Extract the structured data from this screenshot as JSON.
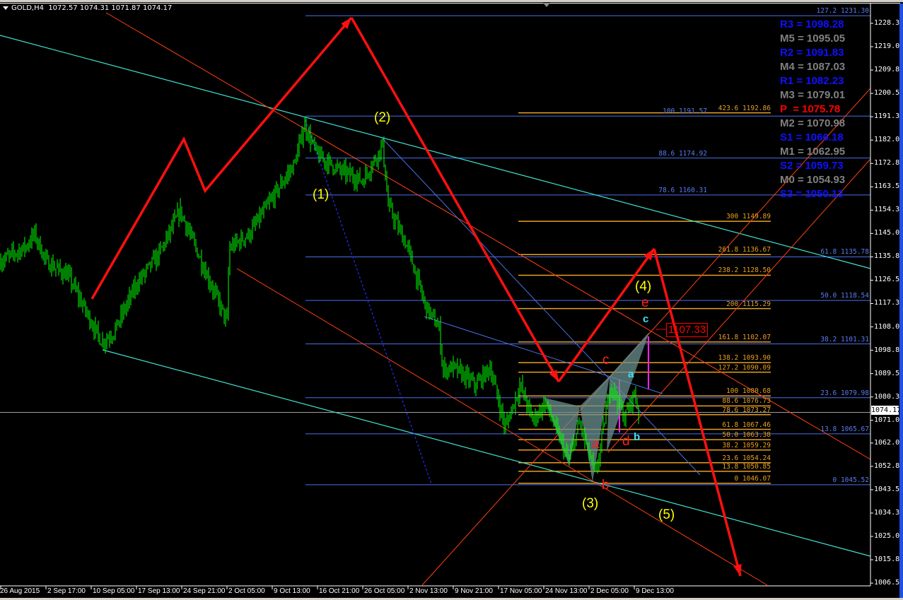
{
  "header": {
    "symbol": "GOLD,H4",
    "open": "1072.57",
    "high": "1074.31",
    "low": "1071.87",
    "close": "1074.17"
  },
  "current_price": "1074.17",
  "target_box": "1107.33",
  "pivots": [
    {
      "text": "R3 = 1098.28",
      "color": "#1010ff"
    },
    {
      "text": "M5 = 1095.05",
      "color": "#808080"
    },
    {
      "text": "R2 = 1091.83",
      "color": "#1010ff"
    },
    {
      "text": "M4 = 1087.03",
      "color": "#808080"
    },
    {
      "text": "R1 = 1082.23",
      "color": "#1010ff"
    },
    {
      "text": "M3 = 1079.01",
      "color": "#808080"
    },
    {
      "text": "P  = 1075.78",
      "color": "#ff0000"
    },
    {
      "text": "M2 = 1070.98",
      "color": "#808080"
    },
    {
      "text": "S1 = 1066.18",
      "color": "#1010ff"
    },
    {
      "text": "M1 = 1062.95",
      "color": "#808080"
    },
    {
      "text": "S2 = 1059.73",
      "color": "#1010ff"
    },
    {
      "text": "M0 = 1054.93",
      "color": "#808080"
    },
    {
      "text": "S3 = 1050.13",
      "color": "#1010ff"
    }
  ],
  "fib_orange": {
    "color": "#e8a020",
    "levels": [
      {
        "level": "423.6",
        "price": "1192.86"
      },
      {
        "level": "300",
        "price": "1149.89"
      },
      {
        "level": "261.8",
        "price": "1136.67"
      },
      {
        "level": "238.2",
        "price": "1128.50"
      },
      {
        "level": "200",
        "price": "1115.29"
      },
      {
        "level": "161.8",
        "price": "1102.07"
      },
      {
        "level": "138.2",
        "price": "1093.90"
      },
      {
        "level": "127.2",
        "price": "1090.09"
      },
      {
        "level": "100",
        "price": "1080.68"
      },
      {
        "level": "88.6",
        "price": "1076.73"
      },
      {
        "level": "78.6",
        "price": "1073.27"
      },
      {
        "level": "61.8",
        "price": "1067.46"
      },
      {
        "level": "50.0",
        "price": "1063.38"
      },
      {
        "level": "38.2",
        "price": "1059.29"
      },
      {
        "level": "23.6",
        "price": "1054.24"
      },
      {
        "level": "13.8",
        "price": "1050.85"
      },
      {
        "level": "0",
        "price": "1046.07"
      }
    ]
  },
  "fib_blue": {
    "color": "#4a70e8",
    "levels": [
      {
        "level": "127.2",
        "price": "1231.30"
      },
      {
        "level": "100",
        "price": "1191.57"
      },
      {
        "level": "88.6",
        "price": "1174.92"
      },
      {
        "level": "78.6",
        "price": "1160.31"
      },
      {
        "level": "61.8",
        "price": "1135.78"
      },
      {
        "level": "50.0",
        "price": "1118.54"
      },
      {
        "level": "38.2",
        "price": "1101.31"
      },
      {
        "level": "23.6",
        "price": "1079.98"
      },
      {
        "level": "13.8",
        "price": "1065.67"
      },
      {
        "level": "0",
        "price": "1045.52"
      }
    ]
  },
  "waves": {
    "color": "#ffff00",
    "w1": "(1)",
    "w2": "(2)",
    "w3": "(3)",
    "w4": "(4)",
    "w5": "(5)"
  },
  "letters_red": {
    "a": "a",
    "b": "b",
    "c": "c",
    "d": "d",
    "e": "e"
  },
  "letters_cyan": {
    "a": "a",
    "b": "b",
    "c": "c"
  },
  "chart_data": {
    "type": "bar",
    "title": "GOLD,H4",
    "series_color": "#00ff00",
    "y_ticks": [
      "1228.30",
      "1219.05",
      "1209.80",
      "1200.55",
      "1191.30",
      "1182.05",
      "1172.80",
      "1163.55",
      "1154.30",
      "1145.05",
      "1135.80",
      "1126.55",
      "1117.30",
      "1108.05",
      "1098.80",
      "1089.55",
      "1080.30",
      "1071.05",
      "1062.05",
      "1052.80",
      "1043.55",
      "1034.30",
      "1025.05",
      "1015.80",
      "1006.55"
    ],
    "ylim": [
      1006.55,
      1228.3
    ],
    "x_ticks": [
      {
        "label": "26 Aug 2015",
        "time": "2015-08-26 00:00"
      },
      {
        "label": "2 Sep 17:00",
        "time": "2015-09-02 17:00"
      },
      {
        "label": "10 Sep 05:00",
        "time": "2015-09-10 05:00"
      },
      {
        "label": "17 Sep 13:00",
        "time": "2015-09-17 13:00"
      },
      {
        "label": "24 Sep 21:00",
        "time": "2015-09-24 21:00"
      },
      {
        "label": "2 Oct 05:00",
        "time": "2015-10-02 05:00"
      },
      {
        "label": "9 Oct 13:00",
        "time": "2015-10-09 13:00"
      },
      {
        "label": "16 Oct 21:00",
        "time": "2015-10-16 21:00"
      },
      {
        "label": "26 Oct 05:00",
        "time": "2015-10-26 05:00"
      },
      {
        "label": "2 Nov 13:00",
        "time": "2015-11-02 13:00"
      },
      {
        "label": "9 Nov 21:00",
        "time": "2015-11-09 21:00"
      },
      {
        "label": "17 Nov 05:00",
        "time": "2015-11-17 05:00"
      },
      {
        "label": "24 Nov 13:00",
        "time": "2015-11-24 13:00"
      },
      {
        "label": "2 Dec 05:00",
        "time": "2015-12-02 05:00"
      },
      {
        "label": "9 Dec 13:00",
        "time": "2015-12-09 13:00"
      }
    ],
    "price_path": [
      {
        "t": "2015-08-26 00:00",
        "p": 1134
      },
      {
        "t": "2015-08-30 08:00",
        "p": 1140
      },
      {
        "t": "2015-08-31 18:00",
        "p": 1145
      },
      {
        "t": "2015-09-02 17:00",
        "p": 1134
      },
      {
        "t": "2015-09-06 11:00",
        "p": 1128
      },
      {
        "t": "2015-09-10 05:00",
        "p": 1110
      },
      {
        "t": "2015-09-11 22:00",
        "p": 1102
      },
      {
        "t": "2015-09-13 21:00",
        "p": 1106
      },
      {
        "t": "2015-09-17 13:00",
        "p": 1125
      },
      {
        "t": "2015-09-21 05:00",
        "p": 1137
      },
      {
        "t": "2015-09-24 15:00",
        "p": 1154
      },
      {
        "t": "2015-09-28 13:00",
        "p": 1131
      },
      {
        "t": "2015-10-02 05:00",
        "p": 1110
      },
      {
        "t": "2015-10-02 13:00",
        "p": 1139
      },
      {
        "t": "2015-10-05 21:00",
        "p": 1145
      },
      {
        "t": "2015-10-09 13:00",
        "p": 1159
      },
      {
        "t": "2015-10-13 05:00",
        "p": 1173
      },
      {
        "t": "2015-10-14 18:00",
        "p": 1188
      },
      {
        "t": "2015-10-16 21:00",
        "p": 1176
      },
      {
        "t": "2015-10-21 13:00",
        "p": 1170
      },
      {
        "t": "2015-10-26 05:00",
        "p": 1166
      },
      {
        "t": "2015-10-29 10:00",
        "p": 1180
      },
      {
        "t": "2015-10-30 08:00",
        "p": 1156
      },
      {
        "t": "2015-11-02 13:00",
        "p": 1139
      },
      {
        "t": "2015-11-05 06:00",
        "p": 1117
      },
      {
        "t": "2015-11-07 15:00",
        "p": 1107
      },
      {
        "t": "2015-11-08 04:00",
        "p": 1091
      },
      {
        "t": "2015-11-09 21:00",
        "p": 1092
      },
      {
        "t": "2015-11-13 13:00",
        "p": 1085
      },
      {
        "t": "2015-11-15 20:00",
        "p": 1092
      },
      {
        "t": "2015-11-18 07:00",
        "p": 1068
      },
      {
        "t": "2015-11-20 17:00",
        "p": 1085
      },
      {
        "t": "2015-11-22 18:00",
        "p": 1071
      },
      {
        "t": "2015-11-24 19:00",
        "p": 1078
      },
      {
        "t": "2015-11-28 18:00",
        "p": 1055
      },
      {
        "t": "2015-11-30 14:00",
        "p": 1070
      },
      {
        "t": "2015-12-03 07:00",
        "p": 1049
      },
      {
        "t": "2015-12-05 17:00",
        "p": 1086
      },
      {
        "t": "2015-12-07 23:00",
        "p": 1072
      },
      {
        "t": "2015-12-09 13:00",
        "p": 1082
      },
      {
        "t": "2015-12-10 06:00",
        "p": 1074.17
      }
    ]
  }
}
